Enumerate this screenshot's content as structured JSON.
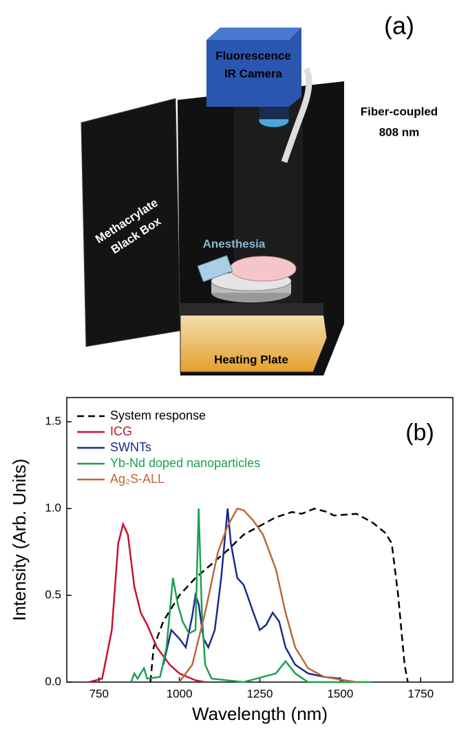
{
  "illustration": {
    "panel_label": "(a)",
    "camera": [
      "Fluorescence",
      "IR Camera"
    ],
    "fiber": [
      "Fiber-coupled",
      "808 nm"
    ],
    "box": [
      "Methacrylate",
      "Black Box"
    ],
    "anesthesia": "Anesthesia",
    "plate": "Heating Plate"
  },
  "chart_data": {
    "type": "line",
    "panel_label": "(b)",
    "x_label": "Wavelength (nm)",
    "y_label": "Intensity (Arb. Units)",
    "xlim": [
      650,
      1850
    ],
    "ylim": [
      0,
      1.64
    ],
    "xticks": [
      750,
      1000,
      1250,
      1500,
      1750
    ],
    "yticks": [
      {
        "value": 0,
        "label": "0.0"
      },
      0.5,
      {
        "value": 1,
        "label": "1.0"
      },
      1.5
    ],
    "series": [
      {
        "name": "System response",
        "color": "#000000",
        "dashed": true,
        "x": [
          910,
          920,
          950,
          1000,
          1050,
          1100,
          1150,
          1200,
          1250,
          1300,
          1350,
          1380,
          1420,
          1460,
          1480,
          1550,
          1600,
          1640,
          1660,
          1680,
          1700,
          1710
        ],
        "values": [
          0,
          0.2,
          0.35,
          0.5,
          0.6,
          0.68,
          0.76,
          0.85,
          0.9,
          0.95,
          0.98,
          0.97,
          1.0,
          0.98,
          0.96,
          0.97,
          0.92,
          0.86,
          0.8,
          0.5,
          0.1,
          0
        ]
      },
      {
        "name": "ICG",
        "color": "#c8102e",
        "x": [
          720,
          760,
          790,
          810,
          825,
          840,
          860,
          880,
          900,
          930,
          970,
          1000,
          1050,
          1080
        ],
        "values": [
          0,
          0.02,
          0.3,
          0.8,
          0.91,
          0.85,
          0.55,
          0.4,
          0.33,
          0.2,
          0.1,
          0.05,
          0.01,
          0
        ]
      },
      {
        "name": "SWNTs",
        "color": "#1a2a8a",
        "x": [
          950,
          975,
          1000,
          1020,
          1040,
          1050,
          1060,
          1075,
          1090,
          1110,
          1130,
          1150,
          1160,
          1180,
          1200,
          1230,
          1250,
          1270,
          1290,
          1310,
          1330,
          1360,
          1400,
          1450,
          1500,
          1510
        ],
        "values": [
          0.1,
          0.3,
          0.25,
          0.2,
          0.38,
          0.5,
          0.45,
          0.25,
          0.2,
          0.3,
          0.6,
          1.0,
          0.8,
          0.6,
          0.56,
          0.4,
          0.3,
          0.33,
          0.4,
          0.35,
          0.2,
          0.1,
          0.05,
          0.03,
          0.02,
          0
        ]
      },
      {
        "name": "Yb-Nd doped nanoparticles",
        "color": "#1aa050",
        "x": [
          850,
          860,
          870,
          890,
          900,
          940,
          960,
          980,
          995,
          1010,
          1030,
          1050,
          1060,
          1070,
          1080,
          1100,
          1200,
          1300,
          1330,
          1360,
          1400,
          1600
        ],
        "values": [
          0,
          0.05,
          0.02,
          0.08,
          0.02,
          0.03,
          0.2,
          0.6,
          0.45,
          0.35,
          0.28,
          0.3,
          1.0,
          0.4,
          0.1,
          0.02,
          0,
          0.05,
          0.12,
          0.05,
          0,
          0
        ]
      },
      {
        "name": "Ag₂S-ALL",
        "color": "#b8683a",
        "x": [
          1000,
          1040,
          1080,
          1120,
          1150,
          1180,
          1200,
          1230,
          1260,
          1300,
          1330,
          1360,
          1400,
          1450,
          1550
        ],
        "values": [
          0,
          0.1,
          0.4,
          0.75,
          0.9,
          1.0,
          0.99,
          0.93,
          0.85,
          0.65,
          0.4,
          0.2,
          0.08,
          0.03,
          0
        ]
      }
    ]
  }
}
